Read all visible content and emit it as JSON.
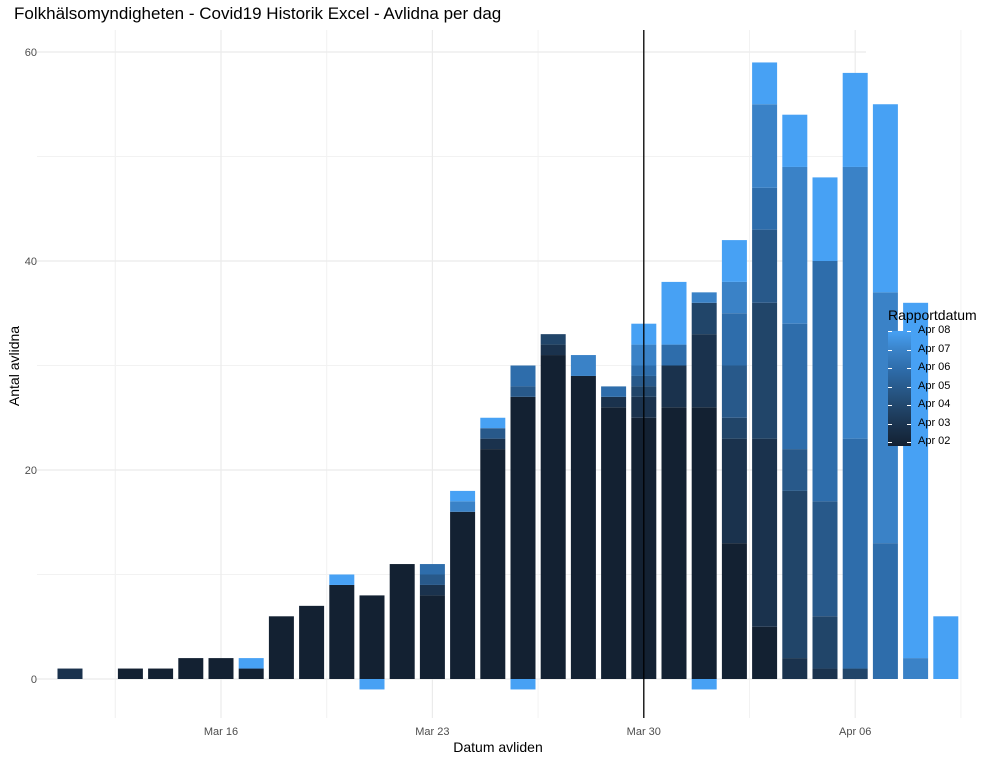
{
  "chart_data": {
    "type": "bar",
    "title": "Folkhälsomyndigheten - Covid19 Historik Excel - Avlidna per dag",
    "xlabel": "Datum avliden",
    "ylabel": "Antal avlidna",
    "x_ticks": [
      "Mar 16",
      "Mar 23",
      "Mar 30",
      "Apr 06"
    ],
    "y_ticks": [
      "0",
      "20",
      "40",
      "60"
    ],
    "ylim": [
      -3,
      62
    ],
    "grid": true,
    "vline_date": "2020-03-30",
    "legend": {
      "title": "Rapportdatum",
      "position": "right",
      "items": [
        "Apr 08",
        "Apr 07",
        "Apr 06",
        "Apr 05",
        "Apr 04",
        "Apr 03",
        "Apr 02"
      ]
    },
    "colors": {
      "Apr 02": "#132132",
      "Apr 03": "#1a324d",
      "Apr 04": "#214569",
      "Apr 05": "#28598a",
      "Apr 06": "#2e6dab",
      "Apr 07": "#3a82c7",
      "Apr 08": "#47a1f4"
    },
    "series_names": [
      "Apr 02",
      "Apr 03",
      "Apr 04",
      "Apr 05",
      "Apr 06",
      "Apr 07",
      "Apr 08"
    ],
    "bars": [
      {
        "date": "2020-03-11",
        "values": [
          0,
          1,
          0,
          0,
          0,
          0,
          0
        ]
      },
      {
        "date": "2020-03-13",
        "values": [
          1,
          0,
          0,
          0,
          0,
          0,
          0
        ]
      },
      {
        "date": "2020-03-14",
        "values": [
          1,
          0,
          0,
          0,
          0,
          0,
          0
        ]
      },
      {
        "date": "2020-03-15",
        "values": [
          2,
          0,
          0,
          0,
          0,
          0,
          0
        ]
      },
      {
        "date": "2020-03-16",
        "values": [
          2,
          0,
          0,
          0,
          0,
          0,
          0
        ]
      },
      {
        "date": "2020-03-17",
        "values": [
          1,
          0,
          0,
          0,
          0,
          0,
          1
        ]
      },
      {
        "date": "2020-03-18",
        "values": [
          6,
          0,
          0,
          0,
          0,
          0,
          0
        ]
      },
      {
        "date": "2020-03-19",
        "values": [
          7,
          0,
          0,
          0,
          0,
          0,
          0
        ]
      },
      {
        "date": "2020-03-20",
        "values": [
          9,
          0,
          0,
          0,
          0,
          0,
          1
        ]
      },
      {
        "date": "2020-03-21",
        "values": [
          8,
          0,
          0,
          0,
          0,
          0,
          -1
        ]
      },
      {
        "date": "2020-03-22",
        "values": [
          11,
          0,
          0,
          0,
          0,
          0,
          0
        ]
      },
      {
        "date": "2020-03-23",
        "values": [
          8,
          1,
          0,
          1,
          1,
          0,
          0
        ]
      },
      {
        "date": "2020-03-24",
        "values": [
          16,
          0,
          0,
          0,
          0,
          1,
          1
        ]
      },
      {
        "date": "2020-03-25",
        "values": [
          22,
          1,
          0,
          1,
          0,
          0,
          1
        ]
      },
      {
        "date": "2020-03-26",
        "values": [
          27,
          0,
          0,
          1,
          2,
          0,
          -1
        ]
      },
      {
        "date": "2020-03-27",
        "values": [
          31,
          1,
          1,
          0,
          0,
          0,
          0
        ]
      },
      {
        "date": "2020-03-28",
        "values": [
          29,
          0,
          0,
          0,
          0,
          2,
          0
        ]
      },
      {
        "date": "2020-03-29",
        "values": [
          26,
          1,
          0,
          0,
          1,
          0,
          0
        ]
      },
      {
        "date": "2020-03-30",
        "values": [
          25,
          2,
          1,
          1,
          1,
          2,
          2
        ]
      },
      {
        "date": "2020-03-31",
        "values": [
          26,
          4,
          0,
          0,
          2,
          0,
          6
        ]
      },
      {
        "date": "2020-04-01",
        "values": [
          26,
          7,
          3,
          0,
          0,
          1,
          -1
        ]
      },
      {
        "date": "2020-04-02",
        "values": [
          13,
          10,
          2,
          5,
          5,
          3,
          4
        ]
      },
      {
        "date": "2020-04-03",
        "values": [
          5,
          18,
          13,
          7,
          4,
          8,
          4
        ]
      },
      {
        "date": "2020-04-04",
        "values": [
          0,
          2,
          16,
          4,
          12,
          15,
          5
        ]
      },
      {
        "date": "2020-04-05",
        "values": [
          0,
          1,
          5,
          11,
          23,
          0,
          8
        ]
      },
      {
        "date": "2020-04-06",
        "values": [
          0,
          0,
          1,
          0,
          22,
          26,
          9
        ]
      },
      {
        "date": "2020-04-07",
        "values": [
          0,
          0,
          0,
          0,
          13,
          24,
          18
        ]
      },
      {
        "date": "2020-04-08",
        "values": [
          0,
          0,
          0,
          0,
          0,
          2,
          34
        ]
      },
      {
        "date": "2020-04-09",
        "values": [
          0,
          0,
          0,
          0,
          0,
          0,
          6
        ]
      }
    ]
  }
}
